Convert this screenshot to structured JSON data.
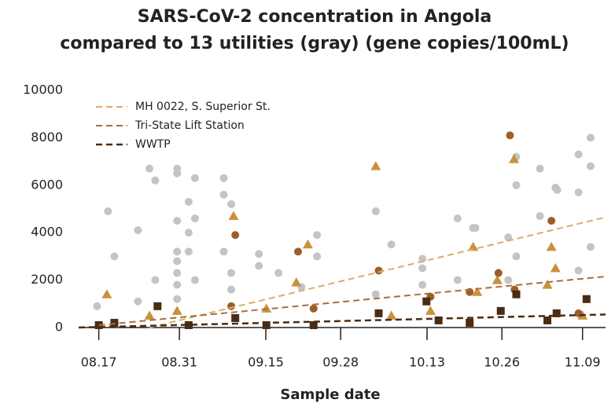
{
  "chart_data": {
    "type": "scatter",
    "title": [
      "SARS-CoV-2 concentration in Angola",
      "compared to 13 utilities (gray) (gene copies/100mL)"
    ],
    "x_label": "Sample date",
    "xlim": [
      225.5,
      317
    ],
    "xticks": [
      {
        "value": 229,
        "label": "08.17"
      },
      {
        "value": 243,
        "label": "08.31"
      },
      {
        "value": 258,
        "label": "09.15"
      },
      {
        "value": 271,
        "label": "09.28"
      },
      {
        "value": 286,
        "label": "10.13"
      },
      {
        "value": 299,
        "label": "10.26"
      },
      {
        "value": 313,
        "label": "11.09"
      }
    ],
    "ylim": [
      0,
      10000
    ],
    "yticks": [
      0,
      2000,
      4000,
      6000,
      8000,
      10000
    ],
    "legend": "upper left",
    "series": [
      {
        "color": "#c4c4c4",
        "marker": "circle",
        "x": [
          228.7,
          230.6,
          231.7,
          235.8,
          235.8,
          237.8,
          238.8,
          238.8,
          242.6,
          242.6,
          242.6,
          242.6,
          242.6,
          242.6,
          242.6,
          242.6,
          244.6,
          244.6,
          244.6,
          245.7,
          245.7,
          245.7,
          250.7,
          250.7,
          250.7,
          252,
          252,
          252,
          256.8,
          256.8,
          260.2,
          264.2,
          266.9,
          266.9,
          277.1,
          277.1,
          279.8,
          285.2,
          285.2,
          285.2,
          291.3,
          291.3,
          294,
          294.4,
          300.1,
          300.1,
          301.5,
          301.5,
          301.5,
          305.6,
          305.6,
          308.3,
          308.6,
          312.3,
          312.3,
          312.3,
          314.4,
          314.4,
          314.4
        ],
        "values": [
          900,
          4900,
          3000,
          4100,
          1100,
          6700,
          6200,
          2000,
          6700,
          6500,
          4500,
          3200,
          2800,
          2300,
          1800,
          1200,
          5300,
          4000,
          3200,
          6300,
          4600,
          2000,
          6300,
          5600,
          3200,
          5200,
          2300,
          1600,
          3100,
          2600,
          2300,
          1700,
          3900,
          3000,
          4900,
          1400,
          3500,
          2500,
          2900,
          1800,
          4600,
          2000,
          4200,
          4200,
          3800,
          2000,
          7200,
          6000,
          3000,
          6700,
          4700,
          5900,
          5800,
          7300,
          5700,
          2400,
          8000,
          6800,
          3400
        ]
      },
      {
        "color": "#c8923c",
        "marker": "triangle",
        "x": [
          230.4,
          237.8,
          242.6,
          252.4,
          258.1,
          263.3,
          265.3,
          277.1,
          279.8,
          286.6,
          294,
          294.7,
          298.2,
          301.1,
          306.9,
          307.6,
          308.3,
          313
        ],
        "values": [
          1400,
          500,
          700,
          4700,
          800,
          1900,
          3500,
          6800,
          500,
          700,
          3400,
          1500,
          2000,
          7100,
          1800,
          3400,
          2500,
          500
        ]
      },
      {
        "color": "#9c5f2a",
        "marker": "circle",
        "x": [
          252,
          252.7,
          263.6,
          266.3,
          277.6,
          286.6,
          293.4,
          298.4,
          300.4,
          301.2,
          307.6,
          312.3
        ],
        "values": [
          900,
          3900,
          3200,
          800,
          2400,
          1300,
          1500,
          2300,
          8100,
          1600,
          4500,
          600
        ]
      },
      {
        "color": "#4a2c14",
        "marker": "square",
        "x": [
          229,
          231.7,
          239.2,
          244.6,
          252.7,
          258.1,
          266.3,
          277.6,
          285.9,
          288,
          293.4,
          298.8,
          301.5,
          306.9,
          308.5,
          313.7
        ],
        "values": [
          100,
          200,
          900,
          100,
          400,
          100,
          100,
          600,
          1100,
          300,
          200,
          700,
          1400,
          300,
          600,
          1200
        ]
      },
      {
        "name": "MH 0022, S. Superior St.",
        "color": "#dcaa6a",
        "marker": "line",
        "x": [
          237.8,
          317
        ],
        "values": [
          0,
          4650
        ]
      },
      {
        "name": "Tri-State Lift Station",
        "color": "#a86e3c",
        "marker": "line",
        "x": [
          229,
          317
        ],
        "values": [
          100,
          2150
        ]
      },
      {
        "name": "WWTP",
        "color": "#4a2c14",
        "marker": "line",
        "x": [
          225.5,
          317
        ],
        "values": [
          0,
          550
        ]
      }
    ]
  }
}
